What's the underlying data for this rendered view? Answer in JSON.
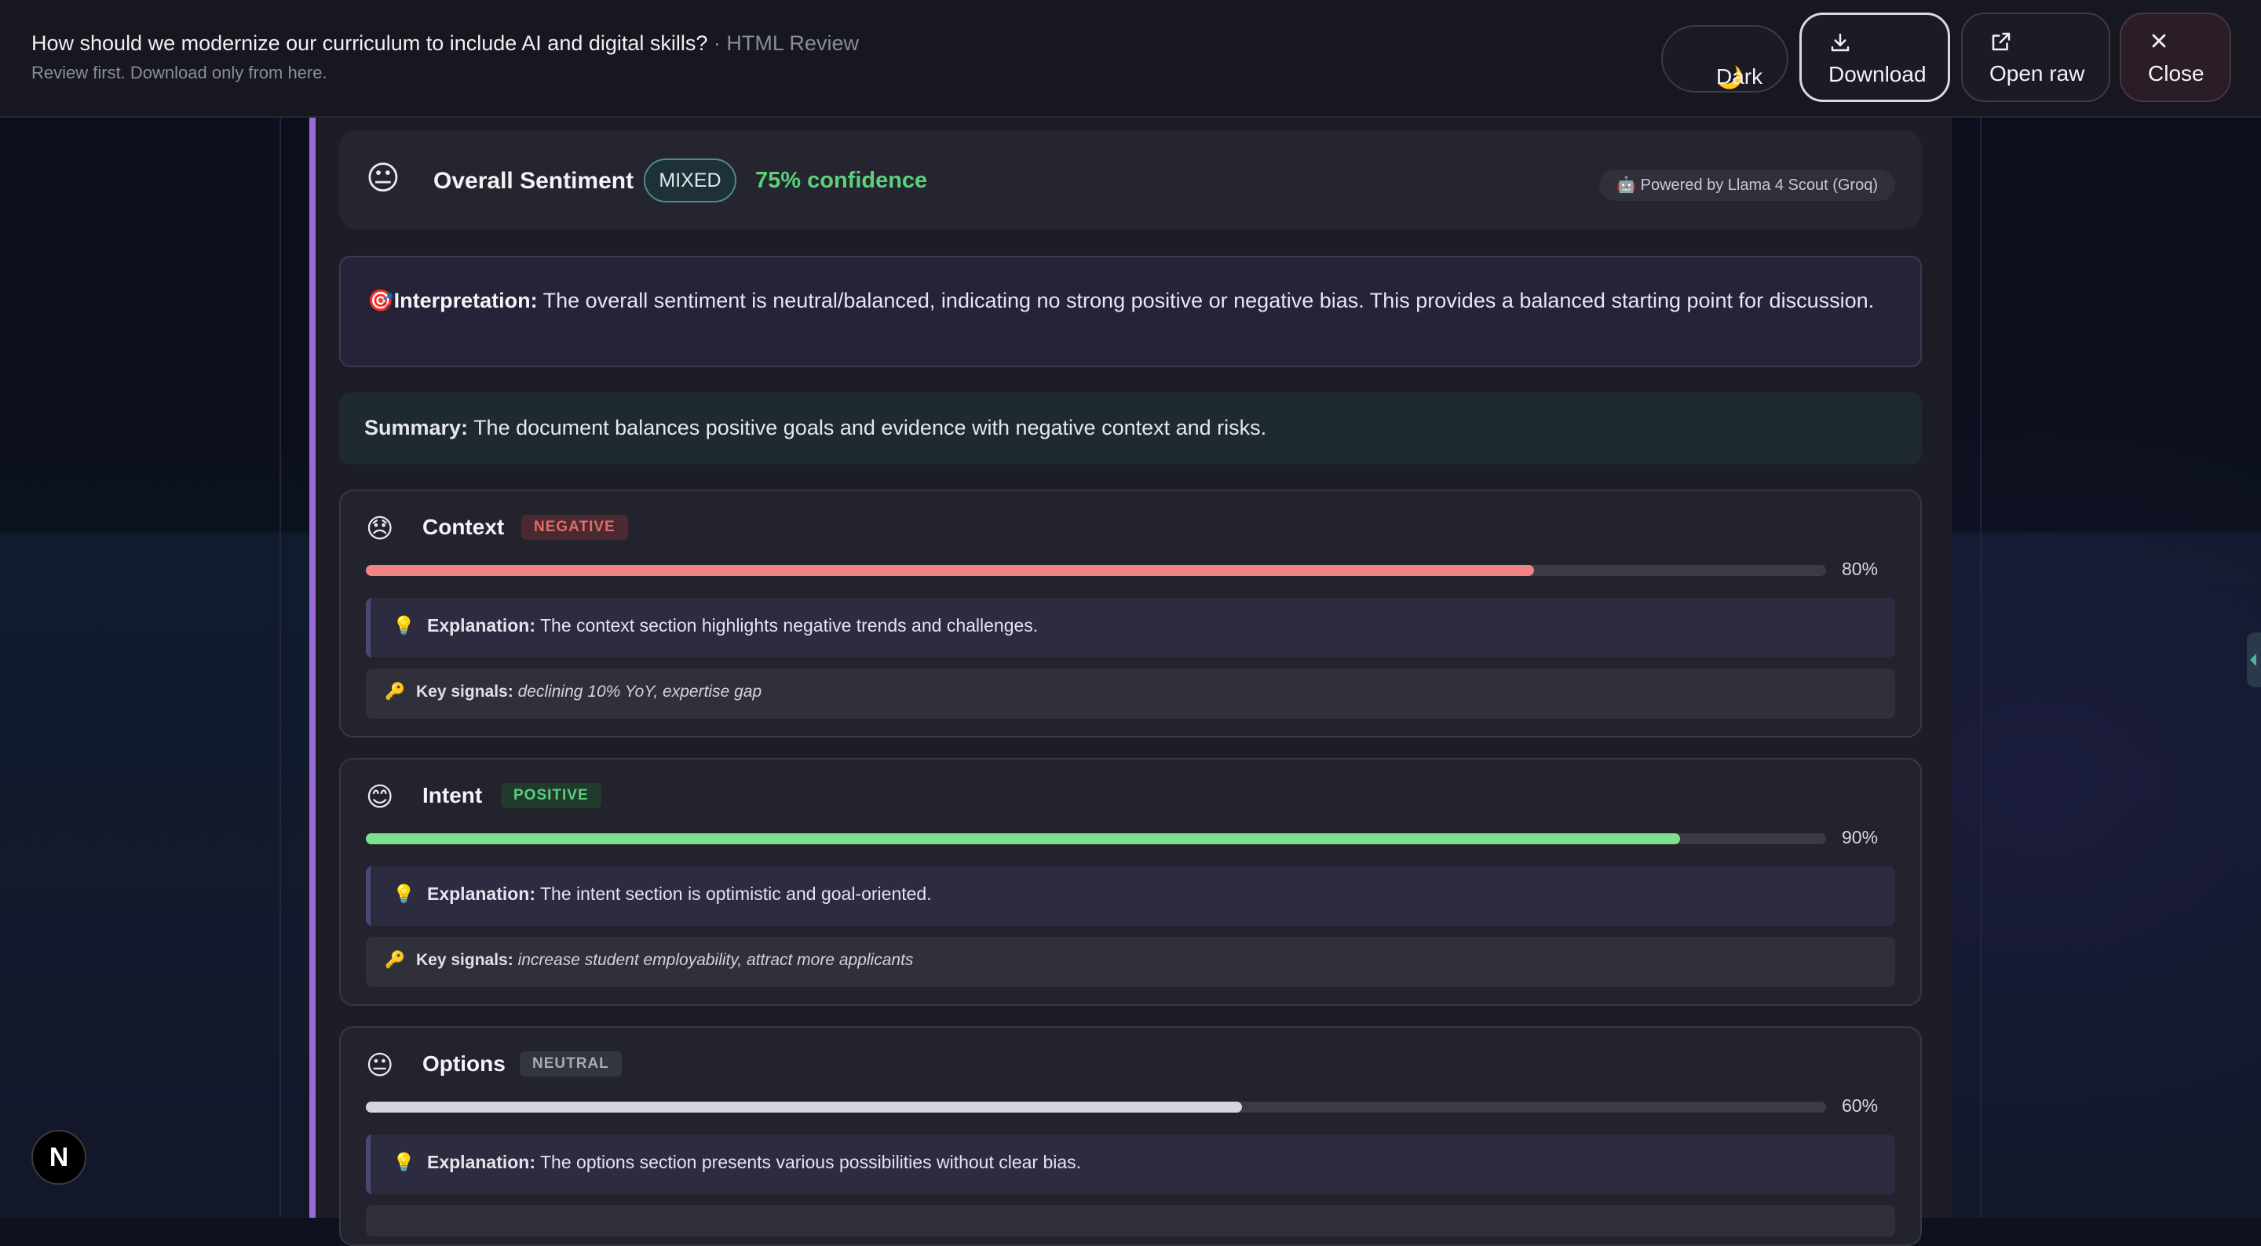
{
  "header": {
    "title": "How should we modernize our curriculum to include AI and digital skills?",
    "title_suffix": "· HTML Review",
    "subtitle": "Review first. Download only from here.",
    "buttons": {
      "dark": "Dark",
      "download": "Download",
      "open_raw": "Open raw",
      "close": "Close"
    }
  },
  "overall": {
    "title": "Overall Sentiment",
    "label": "MIXED",
    "confidence": "75% confidence",
    "powered_by": "Powered by Llama 4 Scout (Groq)"
  },
  "interpretation": {
    "label": "Interpretation:",
    "text": "The overall sentiment is neutral/balanced, indicating no strong positive or negative bias. This provides a balanced starting point for discussion."
  },
  "summary": {
    "label": "Summary:",
    "text": "The document balances positive goals and evidence with negative context and risks."
  },
  "sections": [
    {
      "name": "Context",
      "badge": "NEGATIVE",
      "score": 0.8,
      "percent": "80%",
      "explanation_label": "Explanation:",
      "explanation": "The context section highlights negative trends and challenges.",
      "signals_label": "Key signals:",
      "signals": "declining 10% YoY, expertise gap",
      "color": "#f08484"
    },
    {
      "name": "Intent",
      "badge": "POSITIVE",
      "score": 0.9,
      "percent": "90%",
      "explanation_label": "Explanation:",
      "explanation": "The intent section is optimistic and goal-oriented.",
      "signals_label": "Key signals:",
      "signals": "increase student employability, attract more applicants",
      "color": "#7ee08e"
    },
    {
      "name": "Options",
      "badge": "NEUTRAL",
      "score": 0.6,
      "percent": "60%",
      "explanation_label": "Explanation:",
      "explanation": "The options section presents various possibilities without clear bias.",
      "color": "#d4d6dc"
    }
  ],
  "icons": {
    "dark": "moon-icon",
    "download": "download-icon",
    "open_raw": "external-link-icon",
    "close": "close-icon",
    "overall": "neutral-face-icon",
    "interpretation": "target-icon",
    "explanation": "lightbulb-icon",
    "signals": "key-icon",
    "framework": "nextjs-logo-icon"
  },
  "framework_badge": "N"
}
